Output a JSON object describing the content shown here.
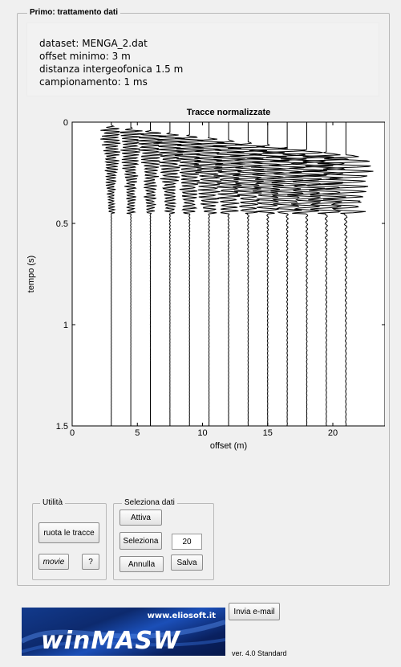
{
  "panel": {
    "title": "Primo: trattamento dati"
  },
  "info": {
    "dataset": "dataset: MENGA_2.dat",
    "offset_min": "offset minimo: 3 m",
    "distance": "distanza intergeofonica 1.5 m",
    "sampling": "campionamento: 1 ms"
  },
  "chart_data": {
    "type": "line",
    "title": "Tracce normalizzate",
    "xlabel": "offset (m)",
    "ylabel": "tempo (s)",
    "xlim": [
      0,
      24
    ],
    "ylim": [
      0,
      1.5
    ],
    "y_inverted": true,
    "x_ticks": [
      0,
      5,
      10,
      15,
      20
    ],
    "y_ticks": [
      0,
      0.5,
      1,
      1.5
    ],
    "x_tick_labels": [
      "0",
      "5",
      "10",
      "15",
      "20"
    ],
    "y_tick_labels": [
      "0",
      "0.5",
      "1",
      "1.5"
    ],
    "trace_offsets": [
      3,
      4.5,
      6,
      7.5,
      9,
      10.5,
      12,
      13.5,
      15,
      16.5,
      18,
      19.5,
      21
    ],
    "grid": false
  },
  "utility": {
    "title": "Utilità",
    "rotate": "ruota le tracce",
    "movie": "movie",
    "help": "?"
  },
  "select": {
    "title": "Seleziona dati",
    "activate": "Attiva",
    "select": "Seleziona",
    "value": "20",
    "cancel": "Annulla",
    "save": "Salva"
  },
  "email_button": "Invia e-mail",
  "logo": {
    "url": "www.eliosoft.it",
    "name": "winMASW"
  },
  "version": "ver. 4.0 Standard"
}
